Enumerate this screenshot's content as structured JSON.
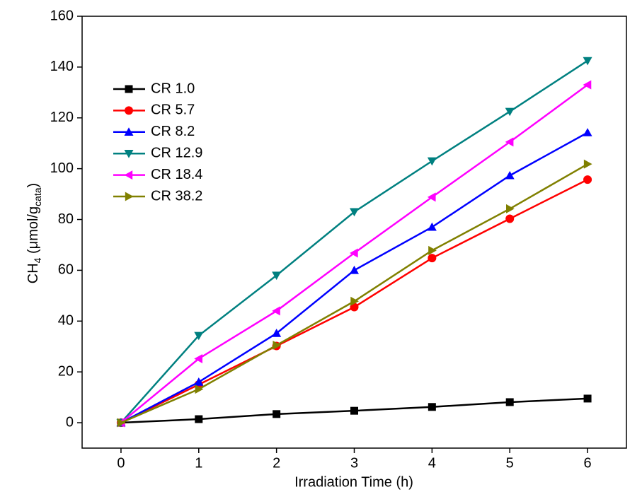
{
  "chart_data": {
    "type": "line",
    "xlabel": "Irradiation Time (h)",
    "ylabel": {
      "main": "CH",
      "sub1": "4",
      "mid": " (μmol/g",
      "sub2": "cata",
      "end": ")"
    },
    "x": [
      0,
      1,
      2,
      3,
      4,
      5,
      6
    ],
    "xlim": [
      -0.5,
      6.5
    ],
    "xticks": [
      0,
      1,
      2,
      3,
      4,
      5,
      6
    ],
    "ylim": [
      -10,
      160
    ],
    "yticks": [
      0,
      20,
      40,
      60,
      80,
      100,
      120,
      140,
      160
    ],
    "legend": "upper left",
    "series": [
      {
        "name": "CR 1.0",
        "color": "#000000",
        "marker": "square",
        "values": [
          0,
          1.4,
          3.4,
          4.7,
          6.2,
          8.1,
          9.5
        ]
      },
      {
        "name": "CR 5.7",
        "color": "#ff0000",
        "marker": "circle",
        "values": [
          0,
          15,
          30.2,
          45.5,
          64.8,
          80.3,
          95.7
        ]
      },
      {
        "name": "CR 8.2",
        "color": "#0000ff",
        "marker": "triangle-up",
        "values": [
          0,
          16,
          35.2,
          60,
          77,
          97.3,
          114.2
        ]
      },
      {
        "name": "CR 12.9",
        "color": "#008080",
        "marker": "triangle-down",
        "values": [
          0,
          34.3,
          58,
          83,
          103,
          122.5,
          142.5
        ]
      },
      {
        "name": "CR 18.4",
        "color": "#ff00ff",
        "marker": "triangle-left",
        "values": [
          0,
          25.2,
          44,
          66.8,
          88.8,
          110.5,
          133
        ]
      },
      {
        "name": "CR 38.2",
        "color": "#808000",
        "marker": "triangle-right",
        "values": [
          0,
          13.2,
          30.5,
          47.8,
          67.8,
          84.2,
          101.8
        ]
      }
    ]
  }
}
